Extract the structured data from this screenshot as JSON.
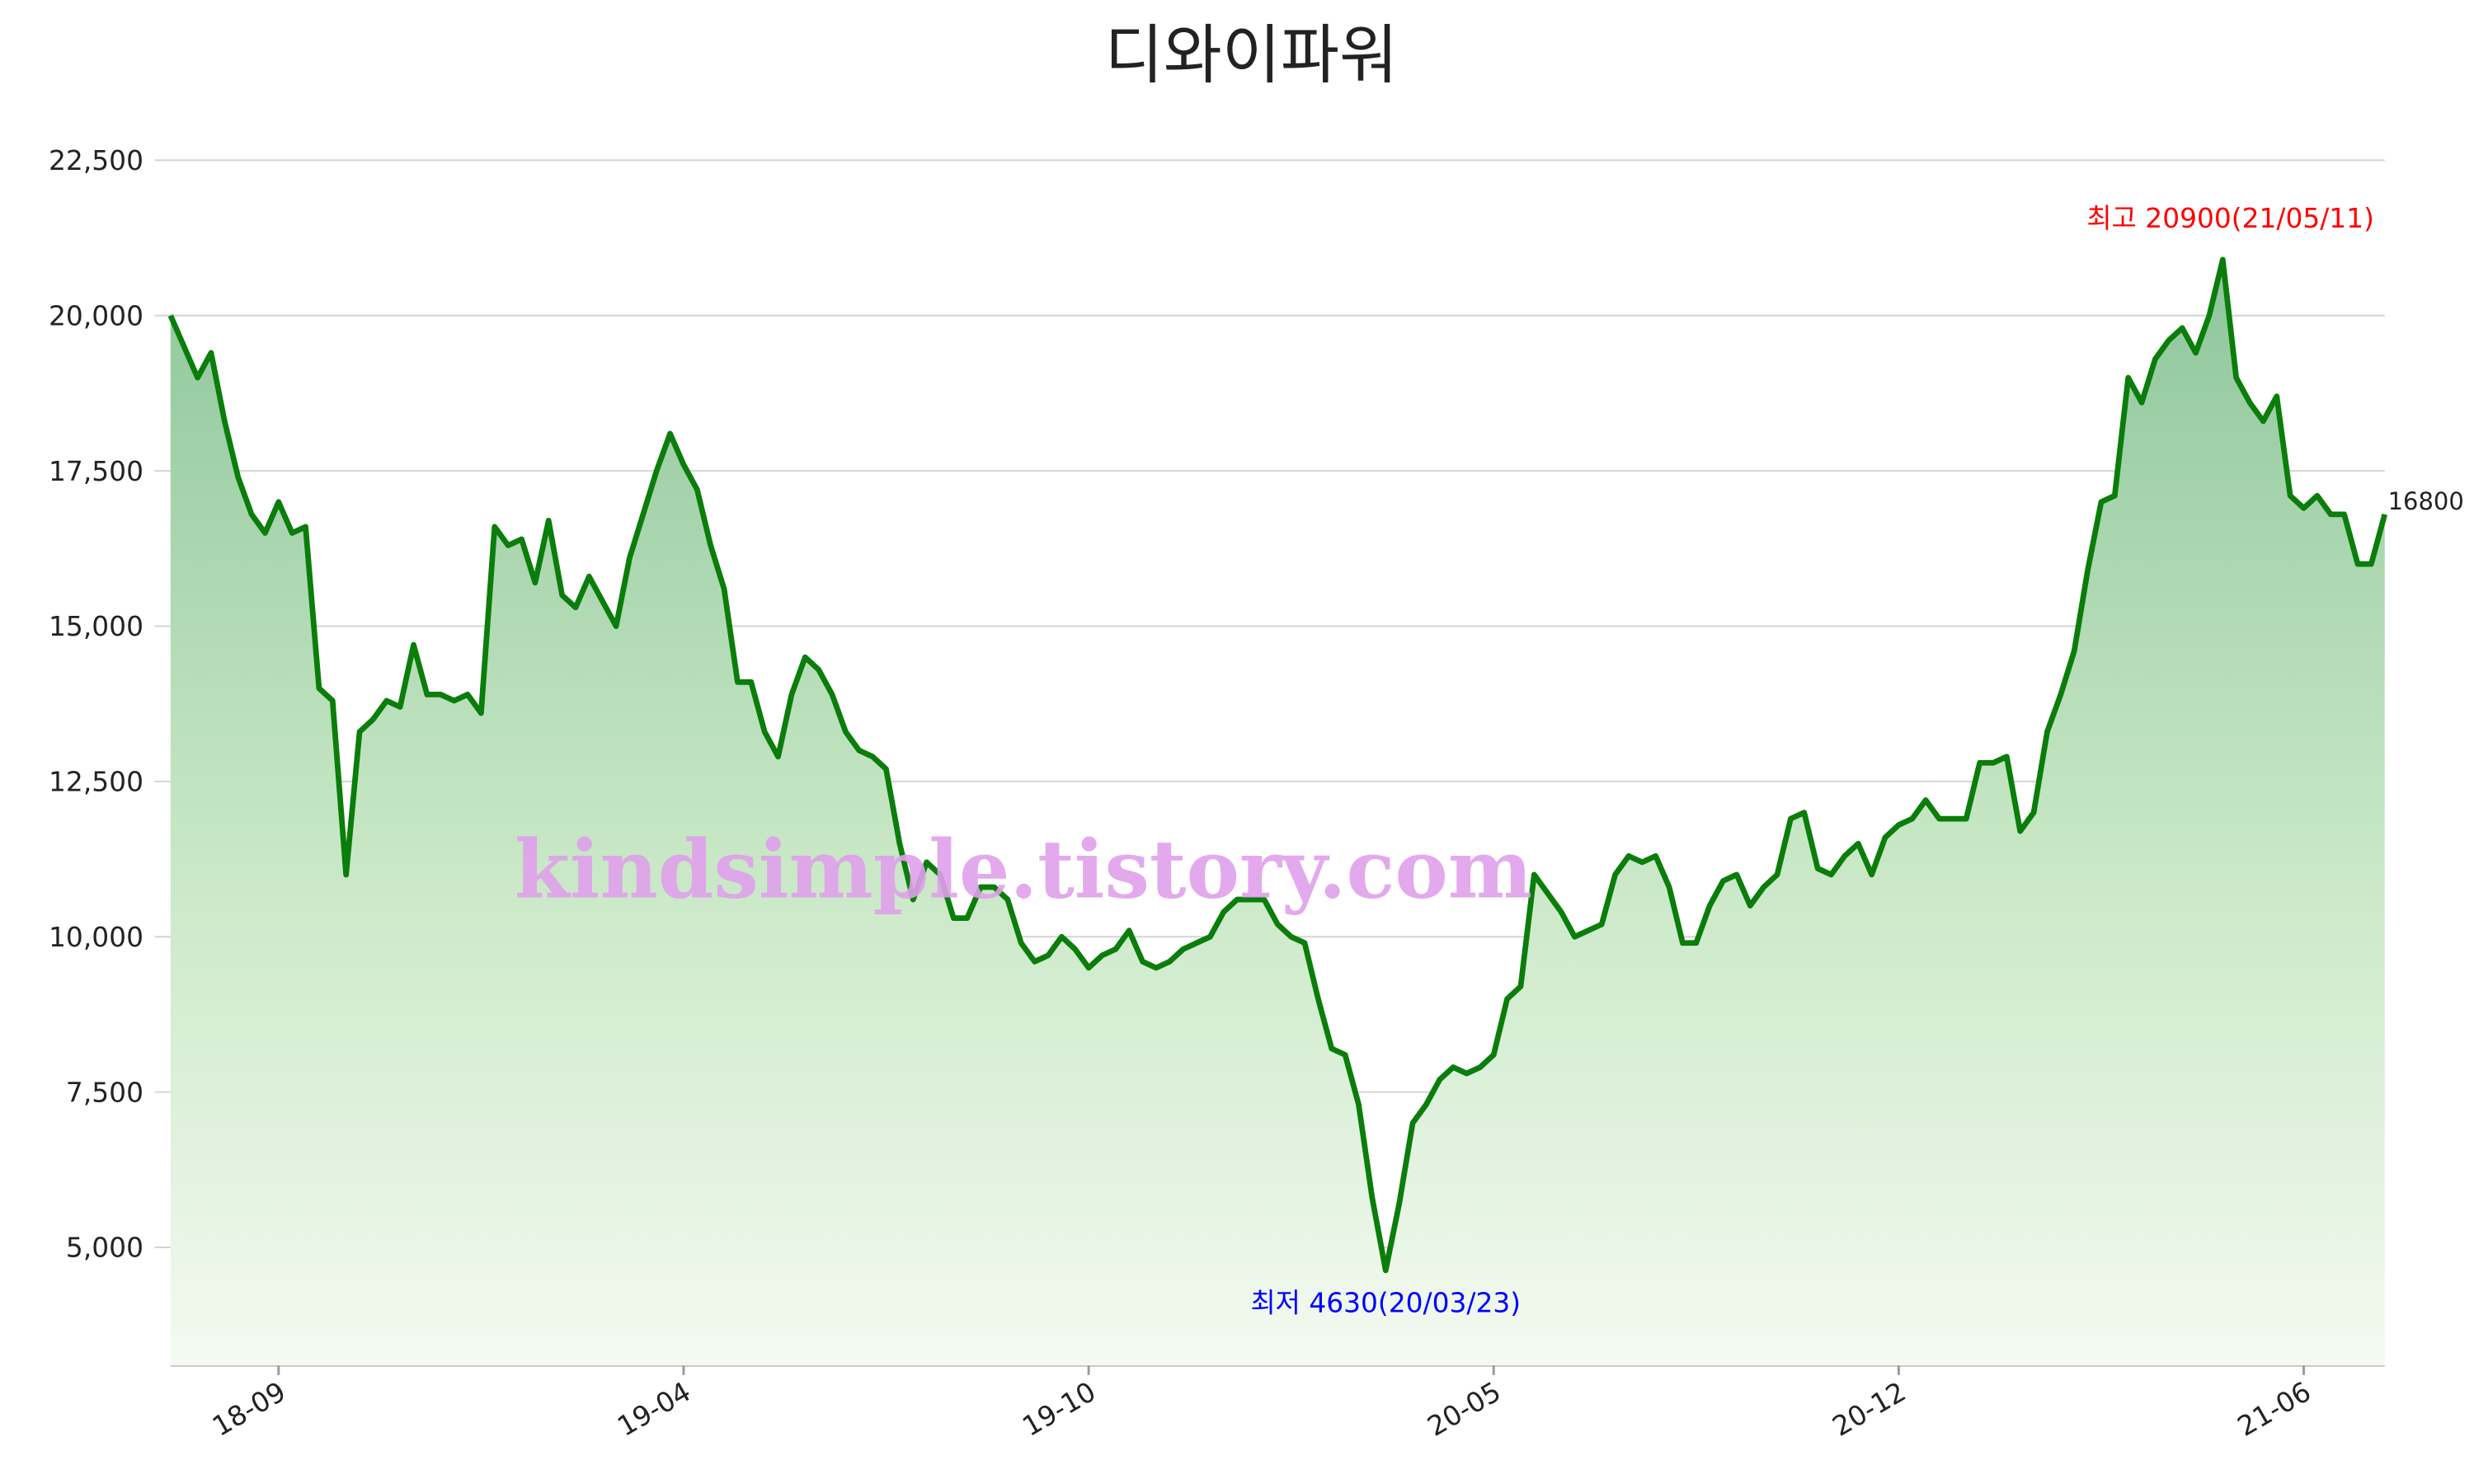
{
  "chart_data": {
    "type": "line",
    "title": "디와이파워",
    "watermark": "kindsimple.tistory.com",
    "categories": [
      null,
      null,
      null,
      null,
      null,
      null,
      null,
      null,
      "18-09",
      null,
      null,
      null,
      null,
      null,
      null,
      null,
      null,
      null,
      null,
      null,
      null,
      null,
      null,
      null,
      null,
      null,
      null,
      null,
      null,
      null,
      null,
      null,
      null,
      null,
      null,
      null,
      null,
      null,
      "19-04",
      null,
      null,
      null,
      null,
      null,
      null,
      null,
      null,
      null,
      null,
      null,
      null,
      null,
      null,
      null,
      null,
      null,
      null,
      null,
      null,
      null,
      null,
      null,
      null,
      null,
      null,
      null,
      null,
      null,
      "19-10",
      null,
      null,
      null,
      null,
      null,
      null,
      null,
      null,
      null,
      null,
      null,
      null,
      null,
      null,
      null,
      null,
      null,
      null,
      null,
      null,
      null,
      null,
      null,
      null,
      null,
      null,
      null,
      null,
      null,
      "20-05",
      null,
      null,
      null,
      null,
      null,
      null,
      null,
      null,
      null,
      null,
      null,
      null,
      null,
      null,
      null,
      null,
      null,
      null,
      null,
      null,
      null,
      null,
      null,
      null,
      null,
      null,
      null,
      null,
      null,
      "20-12",
      null,
      null,
      null,
      null,
      null,
      null,
      null,
      null,
      null,
      null,
      null,
      null,
      null,
      null,
      null,
      null,
      null,
      null,
      null,
      null,
      null,
      null,
      null,
      null,
      null,
      null,
      null,
      null,
      null,
      "21-06",
      null,
      null,
      null,
      null,
      null,
      null
    ],
    "series": [
      {
        "name": "디와이파워",
        "color": "#0a7d0a",
        "values": [
          20000,
          19500,
          19000,
          19400,
          18300,
          17400,
          16800,
          16500,
          17000,
          16500,
          16600,
          14000,
          13800,
          11000,
          13300,
          13500,
          13800,
          13700,
          14700,
          13900,
          13900,
          13800,
          13900,
          13600,
          16600,
          16300,
          16400,
          15700,
          16700,
          15500,
          15300,
          15800,
          15400,
          15000,
          16100,
          16800,
          17500,
          18100,
          17600,
          17200,
          16300,
          15600,
          14100,
          14100,
          13300,
          12900,
          13900,
          14500,
          14300,
          13900,
          13300,
          13000,
          12900,
          12700,
          11500,
          10600,
          11200,
          11000,
          10300,
          10300,
          10800,
          10800,
          10600,
          9900,
          9600,
          9700,
          10000,
          9800,
          9500,
          9700,
          9800,
          10100,
          9600,
          9500,
          9600,
          9800,
          9900,
          10000,
          10400,
          10600,
          10600,
          10600,
          10200,
          10000,
          9900,
          9000,
          8200,
          8100,
          7300,
          5800,
          4630,
          5700,
          7000,
          7300,
          7700,
          7900,
          7800,
          7900,
          8100,
          9000,
          9200,
          11000,
          10700,
          10400,
          10000,
          10100,
          10200,
          11000,
          11300,
          11200,
          11300,
          10800,
          9900,
          9900,
          10500,
          10900,
          11000,
          10500,
          10800,
          11000,
          11900,
          12000,
          11100,
          11000,
          11300,
          11500,
          11000,
          11600,
          11800,
          11900,
          12200,
          11900,
          11900,
          11900,
          12800,
          12800,
          12900,
          11700,
          12000,
          13300,
          13900,
          14600,
          15900,
          17000,
          17100,
          19000,
          18600,
          19300,
          19600,
          19800,
          19400,
          20000,
          20900,
          19000,
          18600,
          18300,
          18700,
          17100,
          16900,
          17100,
          16800,
          16800,
          16000,
          16000,
          16800
        ]
      }
    ],
    "annotations": [
      {
        "text": "최고 20900(21/05/11)",
        "color": "#ff0000"
      },
      {
        "text": "최저 4630(20/03/23)",
        "color": "#0000ff"
      }
    ],
    "ylim": [
      3100,
      22500
    ],
    "yticks": [
      {
        "value": 5000,
        "label": "5,000"
      },
      {
        "value": 7500,
        "label": "7,500"
      },
      {
        "value": 10000,
        "label": "10,000"
      },
      {
        "value": 12500,
        "label": "12,500"
      },
      {
        "value": 15000,
        "label": "15,000"
      },
      {
        "value": 17500,
        "label": "17,500"
      },
      {
        "value": 20000,
        "label": "20,000"
      },
      {
        "value": 22500,
        "label": "22,500"
      }
    ],
    "grid": true
  }
}
